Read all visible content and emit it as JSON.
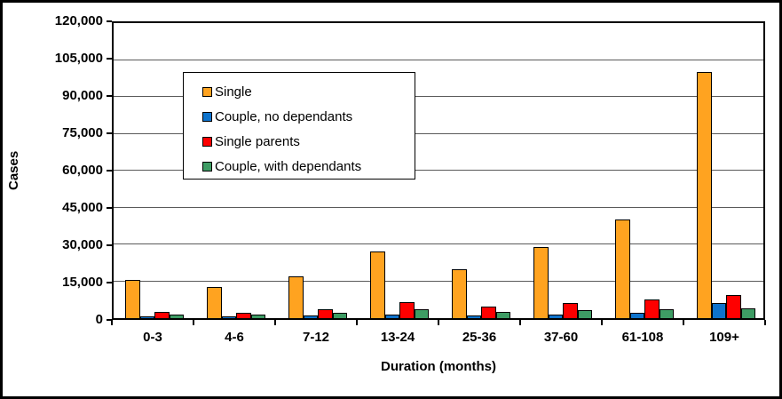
{
  "chart_data": {
    "type": "bar",
    "title": "",
    "xlabel": "Duration (months)",
    "ylabel": "Cases",
    "categories": [
      "0-3",
      "4-6",
      "7-12",
      "13-24",
      "25-36",
      "37-60",
      "61-108",
      "109+"
    ],
    "series": [
      {
        "name": "Single",
        "color": "#FFA320",
        "values": [
          15300,
          12400,
          16800,
          26700,
          19600,
          28700,
          39500,
          98800
        ]
      },
      {
        "name": "Couple, no dependants",
        "color": "#0E73CC",
        "values": [
          700,
          500,
          1000,
          1400,
          900,
          1600,
          2200,
          6200
        ]
      },
      {
        "name": "Single parents",
        "color": "#FE0000",
        "values": [
          2600,
          2300,
          3700,
          6300,
          4600,
          6200,
          7500,
          9200
        ]
      },
      {
        "name": "Couple, with dependants",
        "color": "#3E9C64",
        "values": [
          1400,
          1400,
          2200,
          3500,
          2400,
          3100,
          3400,
          4000
        ]
      }
    ],
    "ylim": [
      0,
      120000
    ],
    "ytick_step": 15000,
    "ytick_labels": [
      "0",
      "15,000",
      "30,000",
      "45,000",
      "60,000",
      "75,000",
      "90,000",
      "105,000",
      "120,000"
    ],
    "grid": true,
    "legend_position": "inside-upper-left"
  }
}
